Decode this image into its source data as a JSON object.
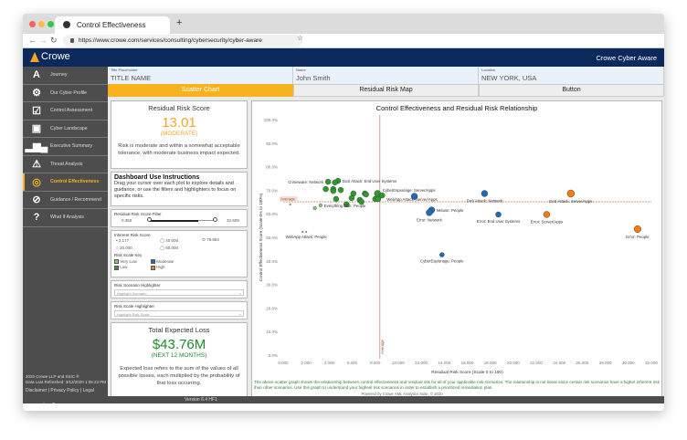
{
  "browser": {
    "tab_title": "Control Effectiveness",
    "url": "https://www.crowe.com/services/consulting/cybersecurity/cyber-aware"
  },
  "header": {
    "logo": "Crowe",
    "brand": "Crowe Cyber Aware"
  },
  "sidebar": {
    "items": [
      {
        "label": "Journey",
        "icon": "road-icon",
        "glyph": "A"
      },
      {
        "label": "Our Cyber Profile",
        "icon": "gear-icon",
        "glyph": "⚙"
      },
      {
        "label": "Control Assessment",
        "icon": "checkbox-icon",
        "glyph": "☑"
      },
      {
        "label": "Cyber Landscape",
        "icon": "image-icon",
        "glyph": "▣"
      },
      {
        "label": "Executive Summary",
        "icon": "bar-chart-icon",
        "glyph": "▂▆▄"
      },
      {
        "label": "Threat Analysis",
        "icon": "warning-icon",
        "glyph": "⚠"
      },
      {
        "label": "Control Effectiveness",
        "icon": "target-icon",
        "glyph": "◎",
        "active": true
      },
      {
        "label": "Guidance / Recommend",
        "icon": "compass-icon",
        "glyph": "⊘"
      },
      {
        "label": "What If Analysis",
        "icon": "question-icon",
        "glyph": "?"
      }
    ],
    "copyright": "2020 Crowe LLP and SSIC ®",
    "refreshed": "Data Last Refreshed: 3/12/2020 1:05:23 PM",
    "links": "Disclaimer | Privacy Policy | Legal",
    "logo": "Crowe"
  },
  "fields": [
    {
      "label": "Title Placeholder",
      "value": "TITLE NAME"
    },
    {
      "label": "Name",
      "value": "John Smith"
    },
    {
      "label": "Location",
      "value": "NEW YORK, USA"
    }
  ],
  "tabs": [
    "Scatter Chart",
    "Residual Risk Map",
    "Button"
  ],
  "residual": {
    "title": "Residual Risk Score",
    "value": "13.01",
    "level": "(MODERATE)",
    "desc": "Risk is moderate and within a somewhat acceptable tolerance, with moderate business impact expected."
  },
  "instructions": {
    "title": "Dashboard Use Instructions",
    "text": "Drag your cursor over each plot to explore details and guidance, or use the filters and highlighters to focus on specific risks."
  },
  "filter": {
    "title": "Residual Risk Score Filter",
    "min": "0.350",
    "max": "32.609",
    "level": 0.75
  },
  "inherent": {
    "title": "Inherent Risk Score",
    "sizes": [
      "2.177",
      "40.000",
      "78.854",
      "20.000",
      "60.000"
    ]
  },
  "key": {
    "title": "Risk Scale Key",
    "items": [
      {
        "label": "Very Low",
        "color": "#8cc97a"
      },
      {
        "label": "Moderate",
        "color": "#1f6bb5"
      },
      {
        "label": "Low",
        "color": "#2e9a2e"
      },
      {
        "label": "High",
        "color": "#f07d1a"
      }
    ]
  },
  "scenario_hl": {
    "title": "Risk Scenario Highlighter",
    "placeholder": "Highlight Scenario"
  },
  "scale_hl": {
    "title": "Risk Scale Highlighter",
    "placeholder": "Highlight Risk Scale"
  },
  "loss": {
    "title": "Total Expected Loss",
    "value": "$43.76M",
    "period": "(NEXT 12 MONTHS)",
    "desc": "Expected loss refers to the sum of the values of all possible losses, each multiplied by the probability of that loss occurring."
  },
  "footer": {
    "version": "Version 6.4 HF1"
  },
  "chart_data": {
    "type": "scatter",
    "title": "Control Effectiveness and Residual Risk Relationship",
    "xlabel": "Residual Risk Score (Scale 0 to 100)",
    "ylabel": "Control Effectiveness Score (Scale 0% to 100%)",
    "xlim": [
      0,
      32000
    ],
    "ylim": [
      0,
      100
    ],
    "xticks": [
      "0.000",
      "2.000",
      "4.000",
      "6.000",
      "8.000",
      "10.000",
      "12.000",
      "14.000",
      "16.000",
      "18.000",
      "20.000",
      "22.000",
      "24.000",
      "26.000",
      "28.000",
      "30.000",
      "32.000"
    ],
    "yticks": [
      "0.0%",
      "10.0%",
      "20.0%",
      "30.0%",
      "40.0%",
      "50.0%",
      "60.0%",
      "70.0%",
      "80.0%",
      "90.0%",
      "100.0%"
    ],
    "average": {
      "x": 8400,
      "y": 65.1,
      "label": "Average"
    },
    "colors": {
      "very_low": "#8cc97a",
      "low": "#2e9a2e",
      "moderate": "#1f6bb5",
      "high": "#f07d1a"
    },
    "points": [
      {
        "x": 3900,
        "y": 73.6,
        "r": 3,
        "c": "low",
        "label": "Crimeware: Network"
      },
      {
        "x": 4760,
        "y": 74,
        "r": 3,
        "c": "low",
        "label": "DoS Attack: End User Systems"
      },
      {
        "x": 4500,
        "y": 73.3,
        "r": 3,
        "c": "low"
      },
      {
        "x": 3700,
        "y": 70.5,
        "r": 3,
        "c": "low"
      },
      {
        "x": 4350,
        "y": 70.5,
        "r": 3,
        "c": "low"
      },
      {
        "x": 4350,
        "y": 69.7,
        "r": 3,
        "c": "low"
      },
      {
        "x": 5000,
        "y": 70.1,
        "r": 3,
        "c": "low"
      },
      {
        "x": 6100,
        "y": 68.6,
        "r": 3,
        "c": "low"
      },
      {
        "x": 7100,
        "y": 68.6,
        "r": 3,
        "c": "low"
      },
      {
        "x": 7200,
        "y": 68.2,
        "r": 3,
        "c": "low"
      },
      {
        "x": 8200,
        "y": 68.6,
        "r": 3.5,
        "c": "low",
        "label": "CyberEspionage: Server/Apps"
      },
      {
        "x": 8600,
        "y": 67.8,
        "r": 3,
        "c": "low",
        "label": "WebApp Attack: Server/Apps"
      },
      {
        "x": 4600,
        "y": 66.3,
        "r": 3,
        "c": "low"
      },
      {
        "x": 5950,
        "y": 66.7,
        "r": 3,
        "c": "low"
      },
      {
        "x": 6650,
        "y": 65.9,
        "r": 3,
        "c": "low"
      },
      {
        "x": 6800,
        "y": 65.1,
        "r": 3,
        "c": "low"
      },
      {
        "x": 8000,
        "y": 66.3,
        "r": 3,
        "c": "low"
      },
      {
        "x": 8250,
        "y": 66.3,
        "r": 3,
        "c": "low"
      },
      {
        "x": 5500,
        "y": 64,
        "r": 3,
        "c": "low"
      },
      {
        "x": 3250,
        "y": 63.6,
        "r": 1.8,
        "c": "very_low",
        "label": "Everything Else: People"
      },
      {
        "x": 2750,
        "y": 62.4,
        "r": 1.8,
        "c": "very_low"
      },
      {
        "x": 600,
        "y": 64,
        "r": 0.8,
        "c": "very_low"
      },
      {
        "x": 1700,
        "y": 52.3,
        "r": 0.8,
        "c": "very_low"
      },
      {
        "x": 2000,
        "y": 52.3,
        "r": 0.8,
        "c": "very_low",
        "label": "WebApp Attack: People"
      },
      {
        "x": 11400,
        "y": 67.4,
        "r": 3.5,
        "c": "moderate"
      },
      {
        "x": 12900,
        "y": 61.6,
        "r": 3.5,
        "c": "moderate",
        "label": "Misuse: People"
      },
      {
        "x": 12700,
        "y": 60.5,
        "r": 3.5,
        "c": "moderate",
        "label": "Error: Network"
      },
      {
        "x": 13800,
        "y": 42.6,
        "r": 2.5,
        "c": "moderate",
        "label": "CyberEspionage: People"
      },
      {
        "x": 17500,
        "y": 68.6,
        "r": 3.5,
        "c": "moderate",
        "label": "DoS Attack: Network"
      },
      {
        "x": 18700,
        "y": 59.7,
        "r": 3,
        "c": "moderate",
        "label": "Error: End User Systems"
      },
      {
        "x": 25000,
        "y": 68.6,
        "r": 4,
        "c": "high",
        "label": "DoS Attack: Server/Apps"
      },
      {
        "x": 22900,
        "y": 59.7,
        "r": 3.5,
        "c": "high",
        "label": "Error: Server/Apps"
      },
      {
        "x": 30800,
        "y": 53.5,
        "r": 3.8,
        "c": "high",
        "label": "Error: People"
      }
    ]
  },
  "chart_note": "The above scatter graph shows the relationship between control effectiveness and residual risk for all of your applicable risk scenarios.  The relationship is not linear since certain risk scenarios have a higher inherent risk than other scenarios.  Use this graph to understand your highest risk scenarios in order to establish a prioritized remediation plan.",
  "powered": "Powered by Crowe AML Analytics Suite, © 2020"
}
